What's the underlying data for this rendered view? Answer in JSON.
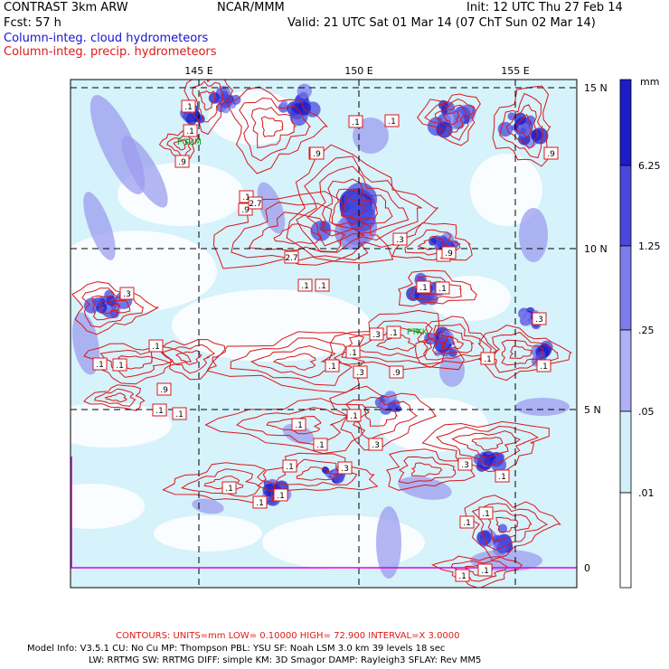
{
  "header": {
    "left_line1": "CONTRAST  3km ARW",
    "center_line1": "NCAR/MMM",
    "right_line1": "Init: 12 UTC Thu 27 Feb 14",
    "left_line2": "Fcst:    57 h",
    "right_line2": "Valid: 21 UTC Sat 01 Mar 14 (07 ChT Sun 02 Mar 14)",
    "legend_blue": "Column-integ. cloud hydrometeors",
    "legend_red": "Column-integ. precip. hydrometeors"
  },
  "colors": {
    "blue_text": "#1414d2",
    "red_text": "#e01818",
    "contour": "#d81818",
    "station": "#00a000"
  },
  "map": {
    "lon_labels": [
      "145 E",
      "150 E",
      "155 E"
    ],
    "lat_labels": [
      "15 N",
      "10 N",
      "5 N",
      "0"
    ],
    "stations": [
      "PGUM",
      "PTKK"
    ],
    "contour_labels": [
      ".1",
      ".1",
      ".9",
      ".1",
      ".9",
      "2.7",
      "2.7",
      "2.7",
      ".1",
      ".1",
      ".1",
      ".3",
      ".1",
      ".1",
      ".9",
      ".1",
      ".1",
      ".9",
      ".3",
      ".1",
      ".1",
      ".3",
      ".9",
      ".1",
      ".3",
      ".1",
      ".1",
      ".1",
      ".1",
      ".3",
      ".1",
      ".1",
      ".1",
      ".1",
      ".3",
      ".1",
      ".3",
      ".1",
      ".1",
      ".1",
      ".3",
      ".9",
      ".9",
      ".1",
      ".1",
      ".1",
      ".1",
      ".1",
      ".1",
      ".1"
    ]
  },
  "colorbar": {
    "unit": "mm",
    "levels": [
      "6.25",
      "1.25",
      ".25",
      ".05",
      ".01"
    ],
    "colors": [
      "#1c1cc8",
      "#4848dc",
      "#7c7cec",
      "#b0b0f8",
      "#d2f0fa",
      "#ffffff"
    ]
  },
  "footer": {
    "contours": "CONTOURS:  UNITS=mm  LOW= 0.10000      HIGH= 72.900      INTERVAL=X  3.0000",
    "model_line1": "Model Info: V3.5.1    CU: No Cu     MP: Thompson     PBL: YSU        SF: Noah LSM     3.0 km   39 levels    18 sec",
    "model_line2": "LW: RRTMG    SW: RRTMG  DIFF: simple KM: 3D Smagor DAMP: Rayleigh3  SFLAY: Rev MM5"
  }
}
